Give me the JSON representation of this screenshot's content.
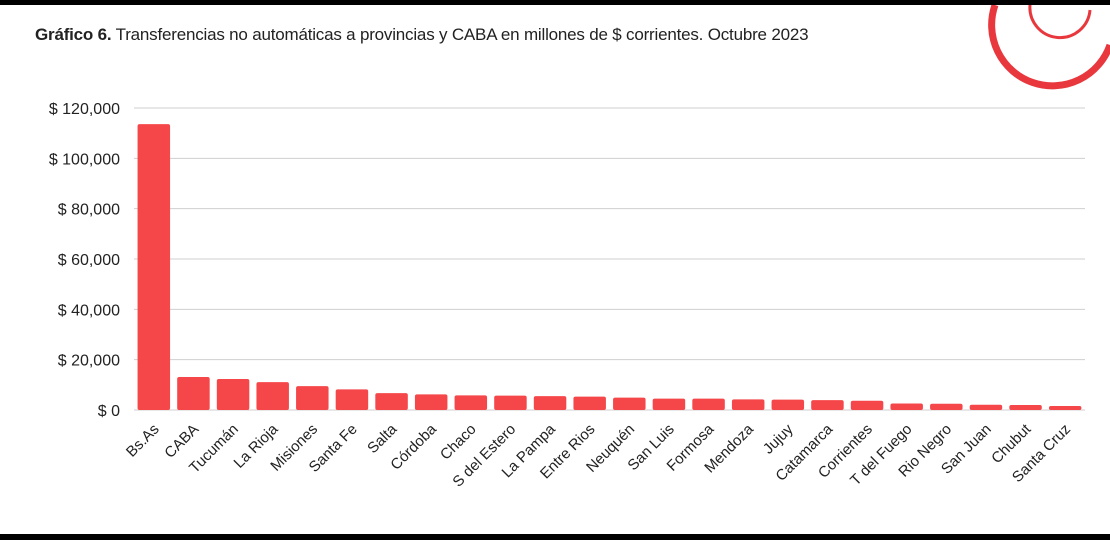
{
  "chart_data": {
    "type": "bar",
    "title_bold": "Gráfico 6.",
    "title": "Transferencias no automáticas a provincias y CABA en millones de $ corrientes. Octubre 2023",
    "xlabel": "",
    "ylabel": "",
    "ylim": [
      0,
      120000
    ],
    "yticks": [
      0,
      20000,
      40000,
      60000,
      80000,
      100000,
      120000
    ],
    "ytick_labels": [
      "$ 0",
      "$ 20,000",
      "$ 40,000",
      "$ 60,000",
      "$ 80,000",
      "$ 100,000",
      "$ 120,000"
    ],
    "grid": true,
    "bar_color": "#f5474a",
    "categories": [
      "Bs.As",
      "CABA",
      "Tucumán",
      "La Rioja",
      "Misiones",
      "Santa Fe",
      "Salta",
      "Córdoba",
      "Chaco",
      "S del Estero",
      "La Pampa",
      "Entre Rios",
      "Neuquén",
      "San Luis",
      "Formosa",
      "Mendoza",
      "Jujuy",
      "Catamarca",
      "Corrientes",
      "T del Fuego",
      "Rio Negro",
      "San Juan",
      "Chubut",
      "Santa Cruz"
    ],
    "values": [
      113600,
      13100,
      12300,
      11100,
      9500,
      8200,
      6700,
      6200,
      5800,
      5700,
      5500,
      5300,
      4900,
      4500,
      4500,
      4200,
      4100,
      3900,
      3700,
      2600,
      2500,
      2100,
      2000,
      1600
    ]
  },
  "logo": {
    "color": "#e8383d"
  }
}
